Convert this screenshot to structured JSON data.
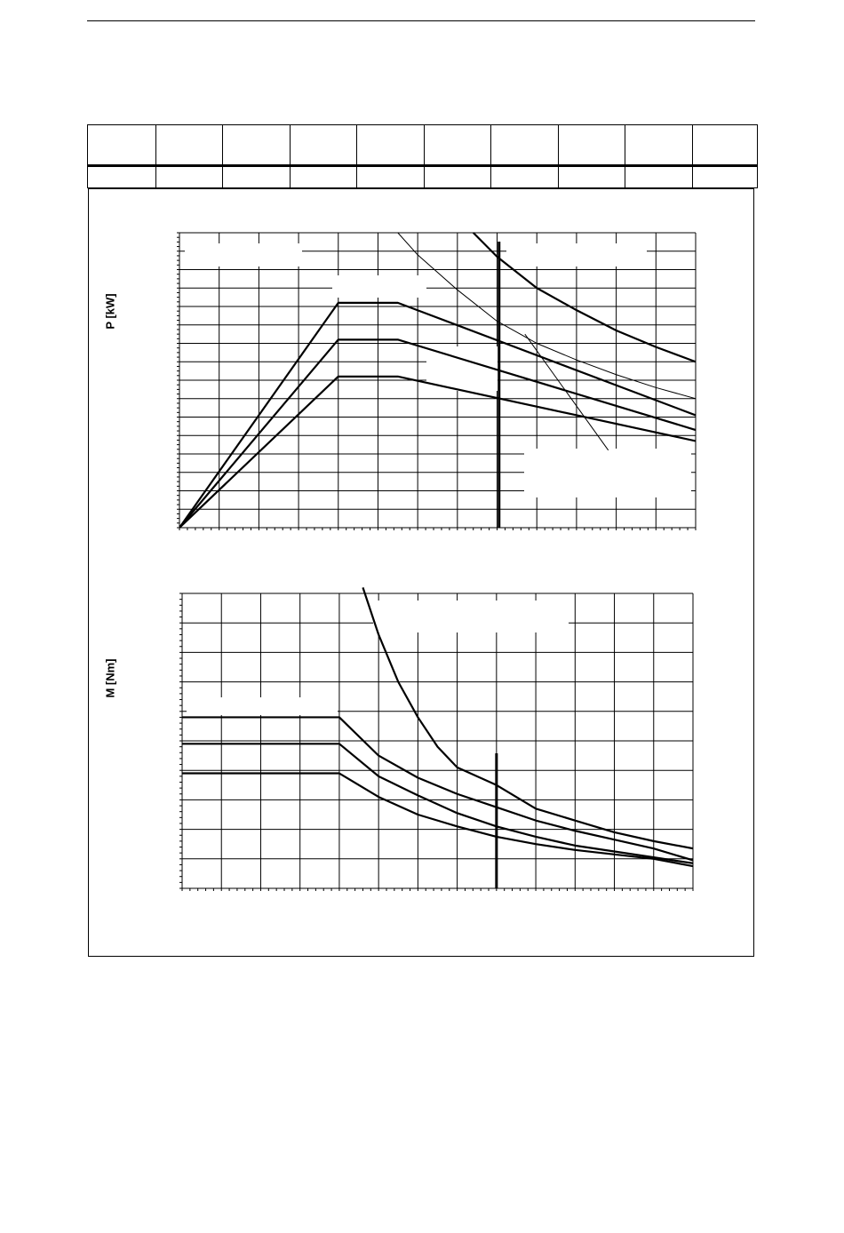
{
  "page": {
    "title": ""
  },
  "spec_table": {
    "columns": 10
  },
  "chart_data": [
    {
      "type": "line",
      "title": "",
      "xlabel": "",
      "ylabel": "P [kW]",
      "xlim": [
        0,
        13
      ],
      "ylim": [
        0,
        16
      ],
      "grid": true,
      "series": [
        {
          "x": [
            0,
            4,
            5.5,
            13
          ],
          "y": [
            0,
            12.2,
            12.2,
            6.1
          ]
        },
        {
          "x": [
            0,
            4,
            5.5,
            13
          ],
          "y": [
            0,
            10.2,
            10.2,
            5.3
          ]
        },
        {
          "x": [
            0,
            4,
            5.5,
            13
          ],
          "y": [
            0,
            8.2,
            8.2,
            4.7
          ]
        },
        {
          "x": [
            7.4,
            8,
            9,
            10,
            11,
            12,
            13
          ],
          "y": [
            16,
            14.7,
            13,
            11.8,
            10.7,
            9.8,
            9.0
          ]
        },
        {
          "x": [
            5.5,
            6,
            7,
            8,
            9,
            10,
            11,
            12,
            13
          ],
          "y": [
            16,
            14.8,
            12.9,
            11.2,
            10.0,
            9.1,
            8.3,
            7.6,
            7.0
          ]
        },
        {
          "x": [
            8.7,
            10.8
          ],
          "y": [
            10.5,
            4.2
          ]
        }
      ],
      "vertical_marker_x": 8.05
    },
    {
      "type": "line",
      "title": "",
      "xlabel": "",
      "ylabel": "M [Nm]",
      "xlim": [
        0,
        13
      ],
      "ylim": [
        0,
        10
      ],
      "grid": true,
      "series": [
        {
          "x": [
            4.6,
            5,
            5.5,
            6,
            6.5,
            7,
            8,
            9,
            10,
            11,
            12,
            13
          ],
          "y": [
            10.2,
            8.6,
            7.0,
            5.8,
            4.8,
            4.1,
            3.5,
            2.7,
            2.3,
            1.9,
            1.6,
            1.35
          ]
        },
        {
          "x": [
            0,
            4,
            5,
            6,
            7,
            8,
            9,
            10,
            11,
            12,
            13
          ],
          "y": [
            5.8,
            5.8,
            4.5,
            3.75,
            3.2,
            2.75,
            2.3,
            1.95,
            1.65,
            1.35,
            0.95
          ]
        },
        {
          "x": [
            0,
            4,
            5,
            6,
            7,
            8,
            9,
            10,
            11,
            12,
            13
          ],
          "y": [
            4.9,
            4.9,
            3.8,
            3.15,
            2.55,
            2.1,
            1.75,
            1.45,
            1.25,
            1.05,
            0.85
          ]
        },
        {
          "x": [
            0,
            4,
            5,
            6,
            7,
            8,
            9,
            10,
            11,
            12,
            13
          ],
          "y": [
            3.9,
            3.9,
            3.1,
            2.5,
            2.1,
            1.75,
            1.5,
            1.3,
            1.15,
            1.0,
            0.75
          ]
        }
      ],
      "vertical_marker_x": 8.0
    }
  ]
}
